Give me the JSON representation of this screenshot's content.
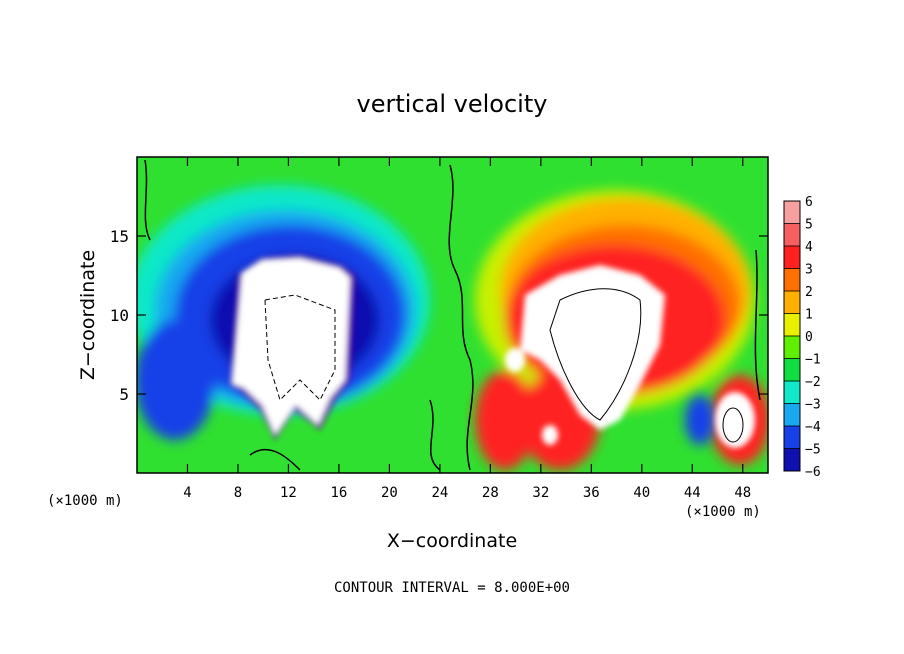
{
  "chart_data": {
    "type": "heatmap",
    "title": "vertical velocity",
    "xlabel": "X−coordinate",
    "ylabel": "Z−coordinate",
    "x_unit_left": "(×1000 m)",
    "x_unit_right": "(×1000 m)",
    "footer": "CONTOUR INTERVAL = 8.000E+00",
    "xlim": [
      0,
      50
    ],
    "ylim": [
      0,
      20
    ],
    "x_ticks": [
      4,
      8,
      12,
      16,
      20,
      24,
      28,
      32,
      36,
      40,
      44,
      48
    ],
    "y_ticks": [
      5,
      10,
      15
    ],
    "colorbar": {
      "min": -6,
      "max": 6,
      "labels": [
        "6",
        "5",
        "4",
        "3",
        "2",
        "1",
        "0",
        "−1",
        "−2",
        "−3",
        "−4",
        "−5",
        "−6"
      ],
      "colors": [
        "#f8a0a0",
        "#f86060",
        "#ff2020",
        "#ff7000",
        "#ffb000",
        "#e8f000",
        "#60ee00",
        "#10dd40",
        "#10e8c8",
        "#18a8f0",
        "#1840e8",
        "#1010b0",
        "#7010a8"
      ]
    },
    "features": {
      "downdraft": {
        "x_range": [
          0,
          22
        ],
        "z_range": [
          0,
          15.5
        ],
        "min_value": -6
      },
      "updraft": {
        "x_range": [
          26,
          50
        ],
        "z_range": [
          0,
          16.5
        ],
        "max_value": 6
      }
    }
  }
}
